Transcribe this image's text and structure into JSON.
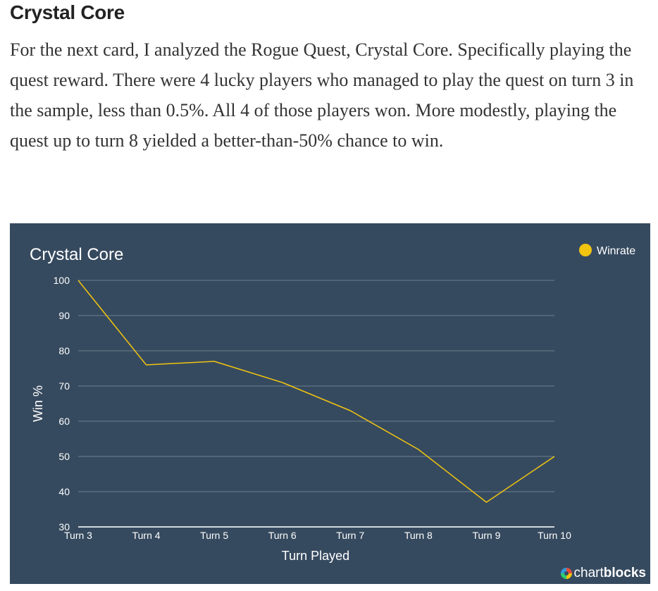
{
  "article": {
    "heading": "Crystal Core",
    "paragraph": "For the next card, I analyzed the Rogue Quest, Crystal Core. Specifically playing the quest reward. There were 4 lucky players who managed to play the quest on turn 3 in the sample, less than 0.5%. All 4 of those players won. More modestly, playing the quest up to turn 8 yielded a better-than-50% chance to win."
  },
  "chart_data": {
    "type": "line",
    "title": "Crystal Core",
    "xlabel": "Turn Played",
    "ylabel": "Win %",
    "categories": [
      "Turn 3",
      "Turn 4",
      "Turn 5",
      "Turn 6",
      "Turn 7",
      "Turn 8",
      "Turn 9",
      "Turn 10"
    ],
    "series": [
      {
        "name": "Winrate",
        "values": [
          100,
          76,
          77,
          71,
          63,
          52,
          37,
          50
        ],
        "color": "#f1c40f"
      }
    ],
    "ylim": [
      30,
      100
    ],
    "yticks": [
      30,
      40,
      50,
      60,
      70,
      80,
      90,
      100
    ],
    "grid": true,
    "legend": "top-right",
    "background": "#364a5f"
  },
  "branding": {
    "prefix": "chart",
    "suffix": "blocks"
  }
}
